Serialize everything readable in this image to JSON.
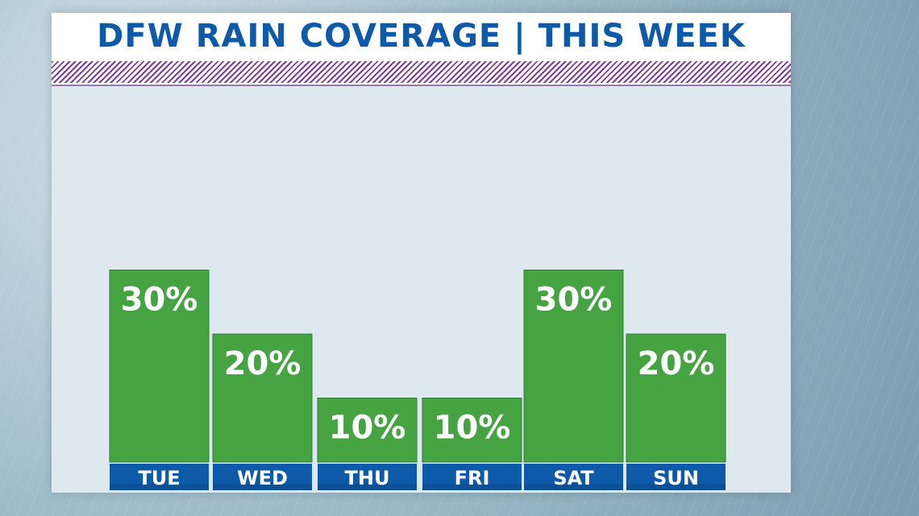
{
  "title": "DFW RAIN COVERAGE | THIS WEEK",
  "colors": {
    "title": "#0e5aa8",
    "stripe": "#7a3d9b",
    "bar": "#45a342",
    "label_box": "#0e5aa8"
  },
  "chart_data": {
    "type": "bar",
    "title": "DFW RAIN COVERAGE | THIS WEEK",
    "xlabel": "",
    "ylabel": "",
    "categories": [
      "TUE",
      "WED",
      "THU",
      "FRI",
      "SAT",
      "SUN"
    ],
    "values": [
      30,
      20,
      10,
      10,
      30,
      20
    ],
    "value_labels": [
      "30%",
      "20%",
      "10%",
      "10%",
      "30%",
      "20%"
    ],
    "ylim": [
      0,
      30
    ],
    "grid": false,
    "legend": "none"
  }
}
